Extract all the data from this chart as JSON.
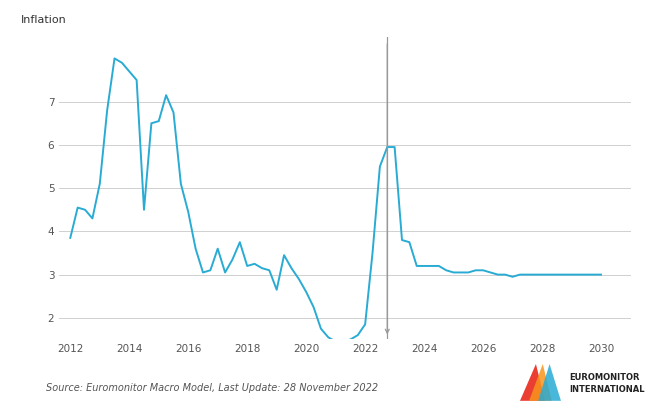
{
  "title": "",
  "ylabel": "Inflation",
  "source_text": "Source: Euromonitor Macro Model, Last Update: 28 November 2022",
  "line_color": "#29ABD4",
  "vline_x": 2022.75,
  "vline_color": "#999999",
  "background_color": "#ffffff",
  "grid_color": "#d0d0d0",
  "ylim": [
    1.5,
    8.5
  ],
  "xlim": [
    2011.6,
    2031.0
  ],
  "yticks": [
    2,
    3,
    4,
    5,
    6,
    7
  ],
  "xticks": [
    2012,
    2014,
    2016,
    2018,
    2020,
    2022,
    2024,
    2026,
    2028,
    2030
  ],
  "x": [
    2012.0,
    2012.25,
    2012.5,
    2012.75,
    2013.0,
    2013.25,
    2013.5,
    2013.75,
    2014.0,
    2014.25,
    2014.5,
    2014.75,
    2015.0,
    2015.25,
    2015.5,
    2015.75,
    2016.0,
    2016.25,
    2016.5,
    2016.75,
    2017.0,
    2017.25,
    2017.5,
    2017.75,
    2018.0,
    2018.25,
    2018.5,
    2018.75,
    2019.0,
    2019.25,
    2019.5,
    2019.75,
    2020.0,
    2020.25,
    2020.5,
    2020.75,
    2021.0,
    2021.25,
    2021.5,
    2021.75,
    2022.0,
    2022.25,
    2022.5,
    2022.75,
    2023.0,
    2023.25,
    2023.5,
    2023.75,
    2024.0,
    2024.25,
    2024.5,
    2024.75,
    2025.0,
    2025.25,
    2025.5,
    2025.75,
    2026.0,
    2026.25,
    2026.5,
    2026.75,
    2027.0,
    2027.25,
    2027.5,
    2027.75,
    2028.0,
    2028.25,
    2028.5,
    2028.75,
    2029.0,
    2029.25,
    2029.5,
    2029.75,
    2030.0
  ],
  "y": [
    3.85,
    4.55,
    4.5,
    4.3,
    5.1,
    6.8,
    8.0,
    7.9,
    7.7,
    7.5,
    4.5,
    6.5,
    6.55,
    7.15,
    6.75,
    5.1,
    4.45,
    3.6,
    3.05,
    3.1,
    3.6,
    3.05,
    3.35,
    3.75,
    3.2,
    3.25,
    3.15,
    3.1,
    2.65,
    3.45,
    3.15,
    2.9,
    2.6,
    2.25,
    1.75,
    1.55,
    1.45,
    1.45,
    1.5,
    1.6,
    1.85,
    3.5,
    5.5,
    5.95,
    5.95,
    3.8,
    3.75,
    3.2,
    3.2,
    3.2,
    3.2,
    3.1,
    3.05,
    3.05,
    3.05,
    3.1,
    3.1,
    3.05,
    3.0,
    3.0,
    2.95,
    3.0,
    3.0,
    3.0,
    3.0,
    3.0,
    3.0,
    3.0,
    3.0,
    3.0,
    3.0,
    3.0,
    3.0
  ]
}
